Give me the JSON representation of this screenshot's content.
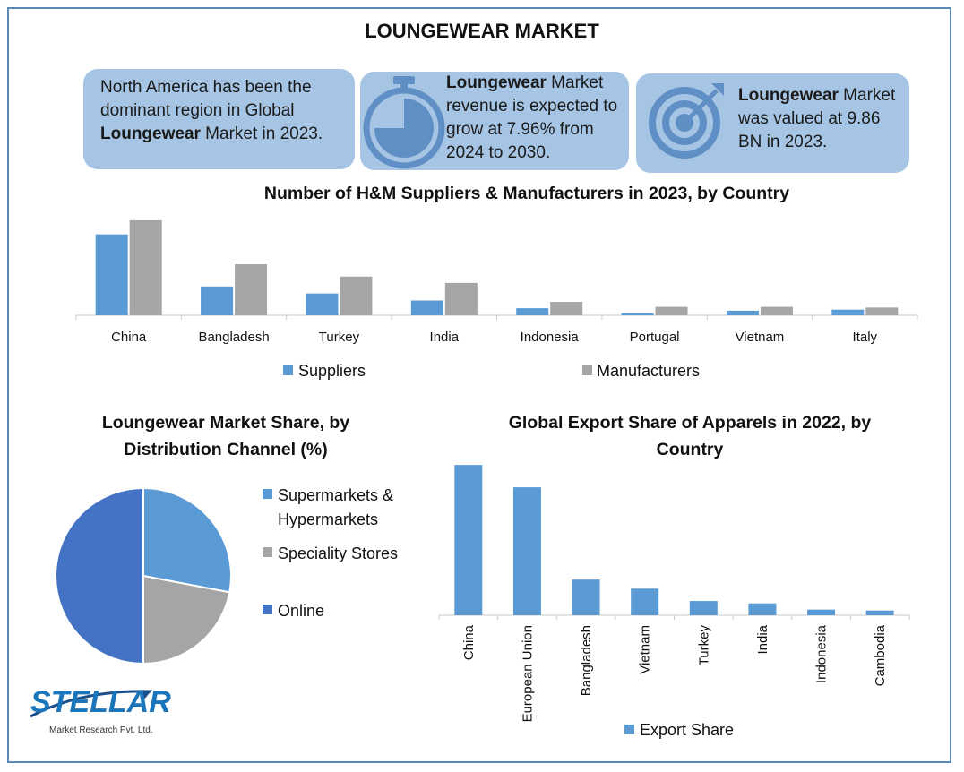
{
  "title": "LOUNGEWEAR MARKET",
  "cards": [
    {
      "pre": "North America has been the dominant region in Global ",
      "bold": "Loungewear",
      "post": " Market in 2023.",
      "icon": "none"
    },
    {
      "pre": "",
      "bold": "Loungewear",
      "post": " Market revenue is expected to grow at 7.96% from 2024 to 2030.",
      "icon": "stopwatch-icon"
    },
    {
      "pre": "",
      "bold": "Loungewear",
      "post": " Market was valued at 9.86 BN in 2023.",
      "icon": "target-icon"
    }
  ],
  "colors": {
    "blue": "#5b9bd5",
    "gray": "#a5a5a5",
    "dark_blue": "#4472c4",
    "card": "#a6c5e4",
    "border": "#5b87b7"
  },
  "logo": {
    "name": "STELLAR",
    "sub": "Market Research Pvt. Ltd."
  },
  "chart_data": [
    {
      "type": "bar",
      "title": "Number of H&M Suppliers & Manufacturers in 2023, by Country",
      "categories": [
        "China",
        "Bangladesh",
        "Turkey",
        "India",
        "Indonesia",
        "Portugal",
        "Vietnam",
        "Italy"
      ],
      "series": [
        {
          "name": "Suppliers",
          "values": [
            230,
            82,
            62,
            42,
            20,
            6,
            13,
            16
          ]
        },
        {
          "name": "Manufacturers",
          "values": [
            270,
            145,
            110,
            92,
            38,
            24,
            24,
            22
          ]
        }
      ],
      "ylim": [
        0,
        280
      ],
      "legend": "bottom"
    },
    {
      "type": "pie",
      "title": "Loungewear Market Share, by Distribution Channel (%)",
      "labels": [
        "Supermarkets & Hypermarkets",
        "Speciality Stores",
        "Online"
      ],
      "values": [
        28,
        22,
        50
      ],
      "legend": "right"
    },
    {
      "type": "bar",
      "title": "Global Export Share of Apparels in 2022, by Country",
      "categories": [
        "China",
        "European Union",
        "Bangladesh",
        "Vietnam",
        "Turkey",
        "India",
        "Indonesia",
        "Cambodia"
      ],
      "series": [
        {
          "name": "Export Share",
          "values": [
            31.6,
            26.9,
            7.5,
            5.6,
            3.0,
            2.5,
            1.2,
            1.0
          ]
        }
      ],
      "ylim": [
        0,
        32
      ],
      "legend": "bottom"
    }
  ]
}
